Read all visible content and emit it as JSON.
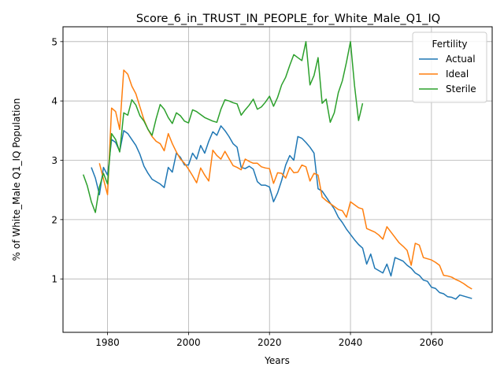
{
  "chart_data": {
    "type": "line",
    "title": "Score_6_in_TRUST_IN_PEOPLE_for_White_Male_Q1_IQ",
    "xlabel": "Years",
    "ylabel": "% of White_Male Q1_IQ Population",
    "xlim": [
      1969,
      2075
    ],
    "ylim": [
      0.1,
      5.25
    ],
    "xticks": [
      1980,
      2000,
      2020,
      2040,
      2060
    ],
    "yticks": [
      1,
      2,
      3,
      4,
      5
    ],
    "grid": true,
    "legend": {
      "title": "Fertility",
      "position": "top-right"
    },
    "series": [
      {
        "name": "Actual",
        "color": "#1f77b4",
        "points": [
          [
            1976,
            2.88
          ],
          [
            1977,
            2.7
          ],
          [
            1978,
            2.42
          ],
          [
            1979,
            2.88
          ],
          [
            1980,
            2.75
          ],
          [
            1981,
            3.35
          ],
          [
            1982,
            3.3
          ],
          [
            1983,
            3.15
          ],
          [
            1984,
            3.5
          ],
          [
            1985,
            3.45
          ],
          [
            1986,
            3.35
          ],
          [
            1987,
            3.25
          ],
          [
            1988,
            3.1
          ],
          [
            1989,
            2.9
          ],
          [
            1990,
            2.78
          ],
          [
            1991,
            2.68
          ],
          [
            1992,
            2.64
          ],
          [
            1993,
            2.6
          ],
          [
            1994,
            2.54
          ],
          [
            1995,
            2.88
          ],
          [
            1996,
            2.8
          ],
          [
            1997,
            3.12
          ],
          [
            1998,
            3.05
          ],
          [
            1999,
            2.92
          ],
          [
            2000,
            2.92
          ],
          [
            2001,
            3.12
          ],
          [
            2002,
            3.02
          ],
          [
            2003,
            3.25
          ],
          [
            2004,
            3.12
          ],
          [
            2005,
            3.32
          ],
          [
            2006,
            3.48
          ],
          [
            2007,
            3.42
          ],
          [
            2008,
            3.58
          ],
          [
            2009,
            3.5
          ],
          [
            2010,
            3.4
          ],
          [
            2011,
            3.28
          ],
          [
            2012,
            3.22
          ],
          [
            2013,
            2.88
          ],
          [
            2014,
            2.86
          ],
          [
            2015,
            2.9
          ],
          [
            2016,
            2.85
          ],
          [
            2017,
            2.64
          ],
          [
            2018,
            2.58
          ],
          [
            2019,
            2.58
          ],
          [
            2020,
            2.55
          ],
          [
            2021,
            2.3
          ],
          [
            2022,
            2.45
          ],
          [
            2023,
            2.66
          ],
          [
            2024,
            2.92
          ],
          [
            2025,
            3.08
          ],
          [
            2026,
            3.0
          ],
          [
            2027,
            3.4
          ],
          [
            2028,
            3.37
          ],
          [
            2029,
            3.3
          ],
          [
            2030,
            3.22
          ],
          [
            2031,
            3.12
          ],
          [
            2032,
            2.52
          ],
          [
            2033,
            2.48
          ],
          [
            2034,
            2.38
          ],
          [
            2035,
            2.28
          ],
          [
            2036,
            2.18
          ],
          [
            2037,
            2.04
          ],
          [
            2038,
            1.95
          ],
          [
            2039,
            1.84
          ],
          [
            2040,
            1.75
          ],
          [
            2041,
            1.66
          ],
          [
            2042,
            1.58
          ],
          [
            2043,
            1.52
          ],
          [
            2044,
            1.25
          ],
          [
            2045,
            1.42
          ],
          [
            2046,
            1.18
          ],
          [
            2047,
            1.14
          ],
          [
            2048,
            1.1
          ],
          [
            2049,
            1.25
          ],
          [
            2050,
            1.05
          ],
          [
            2051,
            1.36
          ],
          [
            2052,
            1.33
          ],
          [
            2053,
            1.3
          ],
          [
            2054,
            1.23
          ],
          [
            2055,
            1.18
          ],
          [
            2056,
            1.1
          ],
          [
            2057,
            1.06
          ],
          [
            2058,
            0.98
          ],
          [
            2059,
            0.96
          ],
          [
            2060,
            0.86
          ],
          [
            2061,
            0.84
          ],
          [
            2062,
            0.77
          ],
          [
            2063,
            0.75
          ],
          [
            2064,
            0.7
          ],
          [
            2065,
            0.69
          ],
          [
            2066,
            0.66
          ],
          [
            2067,
            0.73
          ],
          [
            2068,
            0.71
          ],
          [
            2069,
            0.69
          ],
          [
            2070,
            0.67
          ]
        ]
      },
      {
        "name": "Ideal",
        "color": "#ff7f0e",
        "points": [
          [
            1978,
            2.95
          ],
          [
            1979,
            2.68
          ],
          [
            1980,
            2.42
          ],
          [
            1981,
            3.88
          ],
          [
            1982,
            3.82
          ],
          [
            1983,
            3.52
          ],
          [
            1984,
            4.52
          ],
          [
            1985,
            4.45
          ],
          [
            1986,
            4.25
          ],
          [
            1987,
            4.12
          ],
          [
            1988,
            3.9
          ],
          [
            1989,
            3.68
          ],
          [
            1990,
            3.52
          ],
          [
            1991,
            3.4
          ],
          [
            1992,
            3.32
          ],
          [
            1993,
            3.28
          ],
          [
            1994,
            3.16
          ],
          [
            1995,
            3.45
          ],
          [
            1996,
            3.28
          ],
          [
            1997,
            3.14
          ],
          [
            1998,
            3.02
          ],
          [
            1999,
            2.95
          ],
          [
            2000,
            2.85
          ],
          [
            2001,
            2.74
          ],
          [
            2002,
            2.62
          ],
          [
            2003,
            2.87
          ],
          [
            2004,
            2.75
          ],
          [
            2005,
            2.65
          ],
          [
            2006,
            3.17
          ],
          [
            2007,
            3.08
          ],
          [
            2008,
            3.02
          ],
          [
            2009,
            3.15
          ],
          [
            2010,
            3.03
          ],
          [
            2011,
            2.91
          ],
          [
            2012,
            2.88
          ],
          [
            2013,
            2.84
          ],
          [
            2014,
            3.02
          ],
          [
            2015,
            2.98
          ],
          [
            2016,
            2.95
          ],
          [
            2017,
            2.95
          ],
          [
            2018,
            2.89
          ],
          [
            2019,
            2.87
          ],
          [
            2020,
            2.86
          ],
          [
            2021,
            2.61
          ],
          [
            2022,
            2.79
          ],
          [
            2023,
            2.78
          ],
          [
            2024,
            2.7
          ],
          [
            2025,
            2.88
          ],
          [
            2026,
            2.79
          ],
          [
            2027,
            2.8
          ],
          [
            2028,
            2.92
          ],
          [
            2029,
            2.89
          ],
          [
            2030,
            2.65
          ],
          [
            2031,
            2.78
          ],
          [
            2032,
            2.75
          ],
          [
            2033,
            2.38
          ],
          [
            2034,
            2.32
          ],
          [
            2035,
            2.27
          ],
          [
            2036,
            2.22
          ],
          [
            2037,
            2.17
          ],
          [
            2038,
            2.15
          ],
          [
            2039,
            2.04
          ],
          [
            2040,
            2.3
          ],
          [
            2041,
            2.25
          ],
          [
            2042,
            2.2
          ],
          [
            2043,
            2.18
          ],
          [
            2044,
            1.85
          ],
          [
            2045,
            1.82
          ],
          [
            2046,
            1.79
          ],
          [
            2047,
            1.74
          ],
          [
            2048,
            1.67
          ],
          [
            2049,
            1.88
          ],
          [
            2050,
            1.79
          ],
          [
            2051,
            1.7
          ],
          [
            2052,
            1.61
          ],
          [
            2053,
            1.55
          ],
          [
            2054,
            1.48
          ],
          [
            2055,
            1.23
          ],
          [
            2056,
            1.6
          ],
          [
            2057,
            1.57
          ],
          [
            2058,
            1.36
          ],
          [
            2059,
            1.34
          ],
          [
            2060,
            1.32
          ],
          [
            2061,
            1.28
          ],
          [
            2062,
            1.23
          ],
          [
            2063,
            1.06
          ],
          [
            2064,
            1.05
          ],
          [
            2065,
            1.03
          ],
          [
            2066,
            0.99
          ],
          [
            2067,
            0.96
          ],
          [
            2068,
            0.92
          ],
          [
            2069,
            0.87
          ],
          [
            2070,
            0.83
          ]
        ]
      },
      {
        "name": "Sterile",
        "color": "#2ca02c",
        "points": [
          [
            1974,
            2.76
          ],
          [
            1975,
            2.57
          ],
          [
            1976,
            2.3
          ],
          [
            1977,
            2.12
          ],
          [
            1978,
            2.55
          ],
          [
            1979,
            2.78
          ],
          [
            1980,
            2.6
          ],
          [
            1981,
            3.45
          ],
          [
            1982,
            3.35
          ],
          [
            1983,
            3.14
          ],
          [
            1984,
            3.8
          ],
          [
            1985,
            3.76
          ],
          [
            1986,
            4.02
          ],
          [
            1987,
            3.93
          ],
          [
            1988,
            3.75
          ],
          [
            1989,
            3.66
          ],
          [
            1990,
            3.52
          ],
          [
            1991,
            3.42
          ],
          [
            1992,
            3.7
          ],
          [
            1993,
            3.94
          ],
          [
            1994,
            3.86
          ],
          [
            1995,
            3.72
          ],
          [
            1996,
            3.62
          ],
          [
            1997,
            3.8
          ],
          [
            1998,
            3.75
          ],
          [
            1999,
            3.66
          ],
          [
            2000,
            3.63
          ],
          [
            2001,
            3.85
          ],
          [
            2002,
            3.82
          ],
          [
            2003,
            3.77
          ],
          [
            2004,
            3.72
          ],
          [
            2005,
            3.69
          ],
          [
            2006,
            3.66
          ],
          [
            2007,
            3.64
          ],
          [
            2008,
            3.86
          ],
          [
            2009,
            4.02
          ],
          [
            2010,
            4.0
          ],
          [
            2011,
            3.97
          ],
          [
            2012,
            3.95
          ],
          [
            2013,
            3.76
          ],
          [
            2014,
            3.85
          ],
          [
            2015,
            3.93
          ],
          [
            2016,
            4.03
          ],
          [
            2017,
            3.86
          ],
          [
            2018,
            3.9
          ],
          [
            2019,
            3.98
          ],
          [
            2020,
            4.08
          ],
          [
            2021,
            3.91
          ],
          [
            2022,
            4.06
          ],
          [
            2023,
            4.27
          ],
          [
            2024,
            4.4
          ],
          [
            2025,
            4.6
          ],
          [
            2026,
            4.78
          ],
          [
            2027,
            4.73
          ],
          [
            2028,
            4.68
          ],
          [
            2029,
            5.0
          ],
          [
            2030,
            4.27
          ],
          [
            2031,
            4.43
          ],
          [
            2032,
            4.73
          ],
          [
            2033,
            3.96
          ],
          [
            2034,
            4.03
          ],
          [
            2035,
            3.64
          ],
          [
            2036,
            3.8
          ],
          [
            2037,
            4.14
          ],
          [
            2038,
            4.34
          ],
          [
            2039,
            4.65
          ],
          [
            2040,
            5.0
          ],
          [
            2041,
            4.26
          ],
          [
            2042,
            3.67
          ],
          [
            2043,
            3.96
          ]
        ]
      }
    ]
  }
}
